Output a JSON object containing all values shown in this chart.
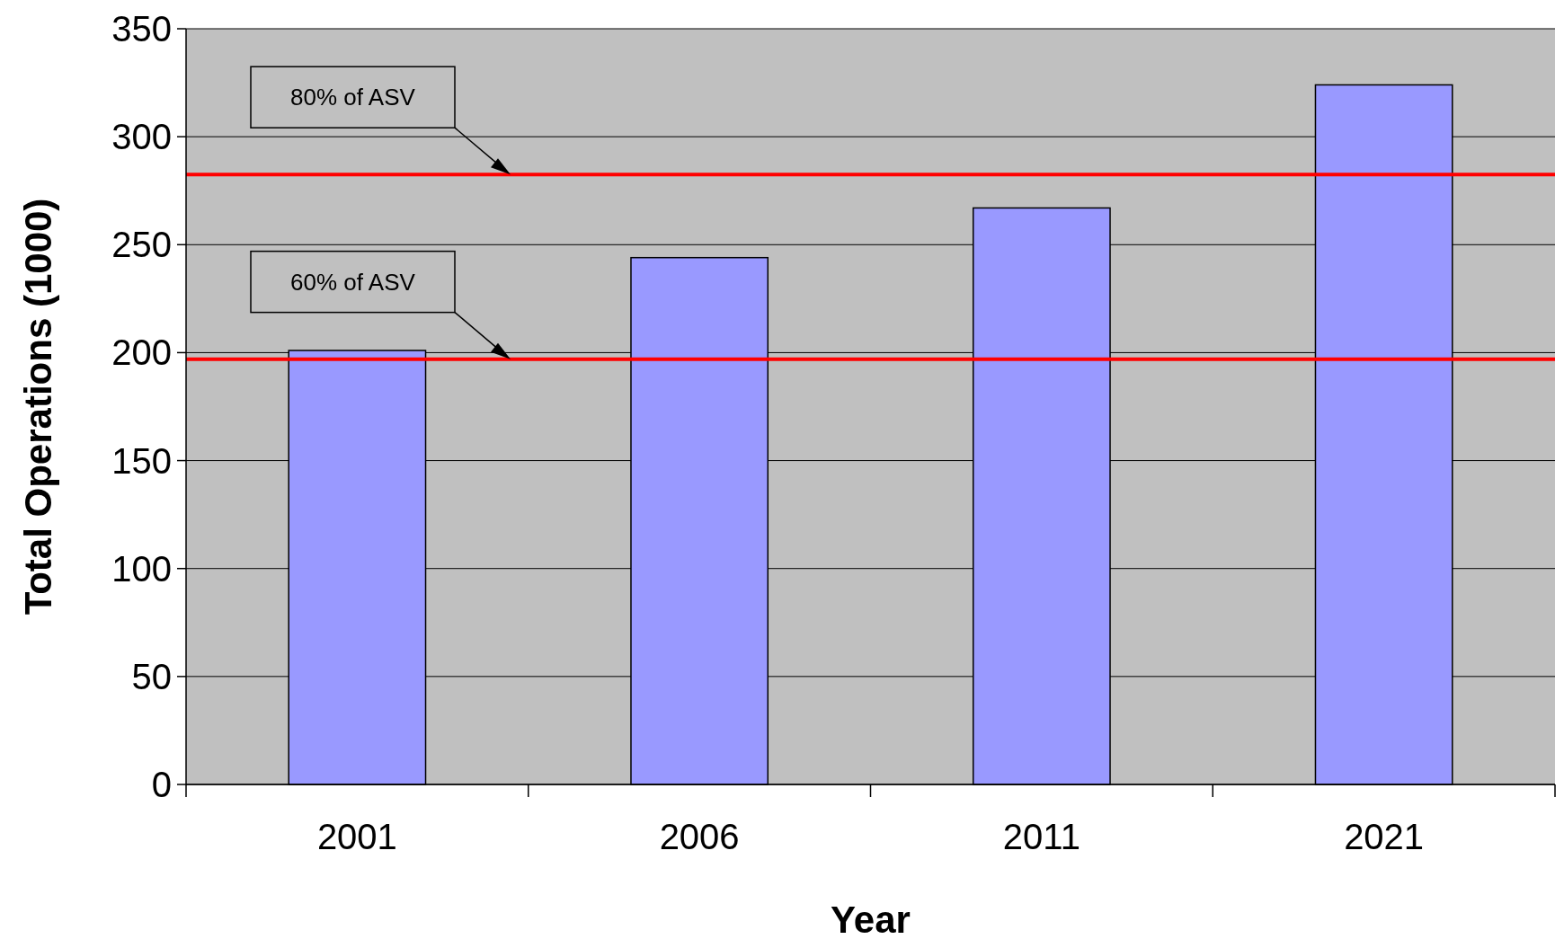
{
  "chart_data": {
    "type": "bar",
    "xlabel": "Year",
    "ylabel": "Total Operations (1000)",
    "categories": [
      "2001",
      "2006",
      "2011",
      "2021"
    ],
    "values": [
      201,
      244,
      267,
      324
    ],
    "color": "#9999ff",
    "ylim": [
      0,
      350
    ],
    "yticks": [
      0,
      50,
      100,
      150,
      200,
      250,
      300,
      350
    ],
    "grid": "y",
    "ref_lines": [
      {
        "axis": "y",
        "value": 282.5,
        "label": "80% of ASV",
        "color": "#ff0000"
      },
      {
        "axis": "y",
        "value": 197,
        "label": "60% of ASV",
        "color": "#ff0000"
      }
    ]
  }
}
